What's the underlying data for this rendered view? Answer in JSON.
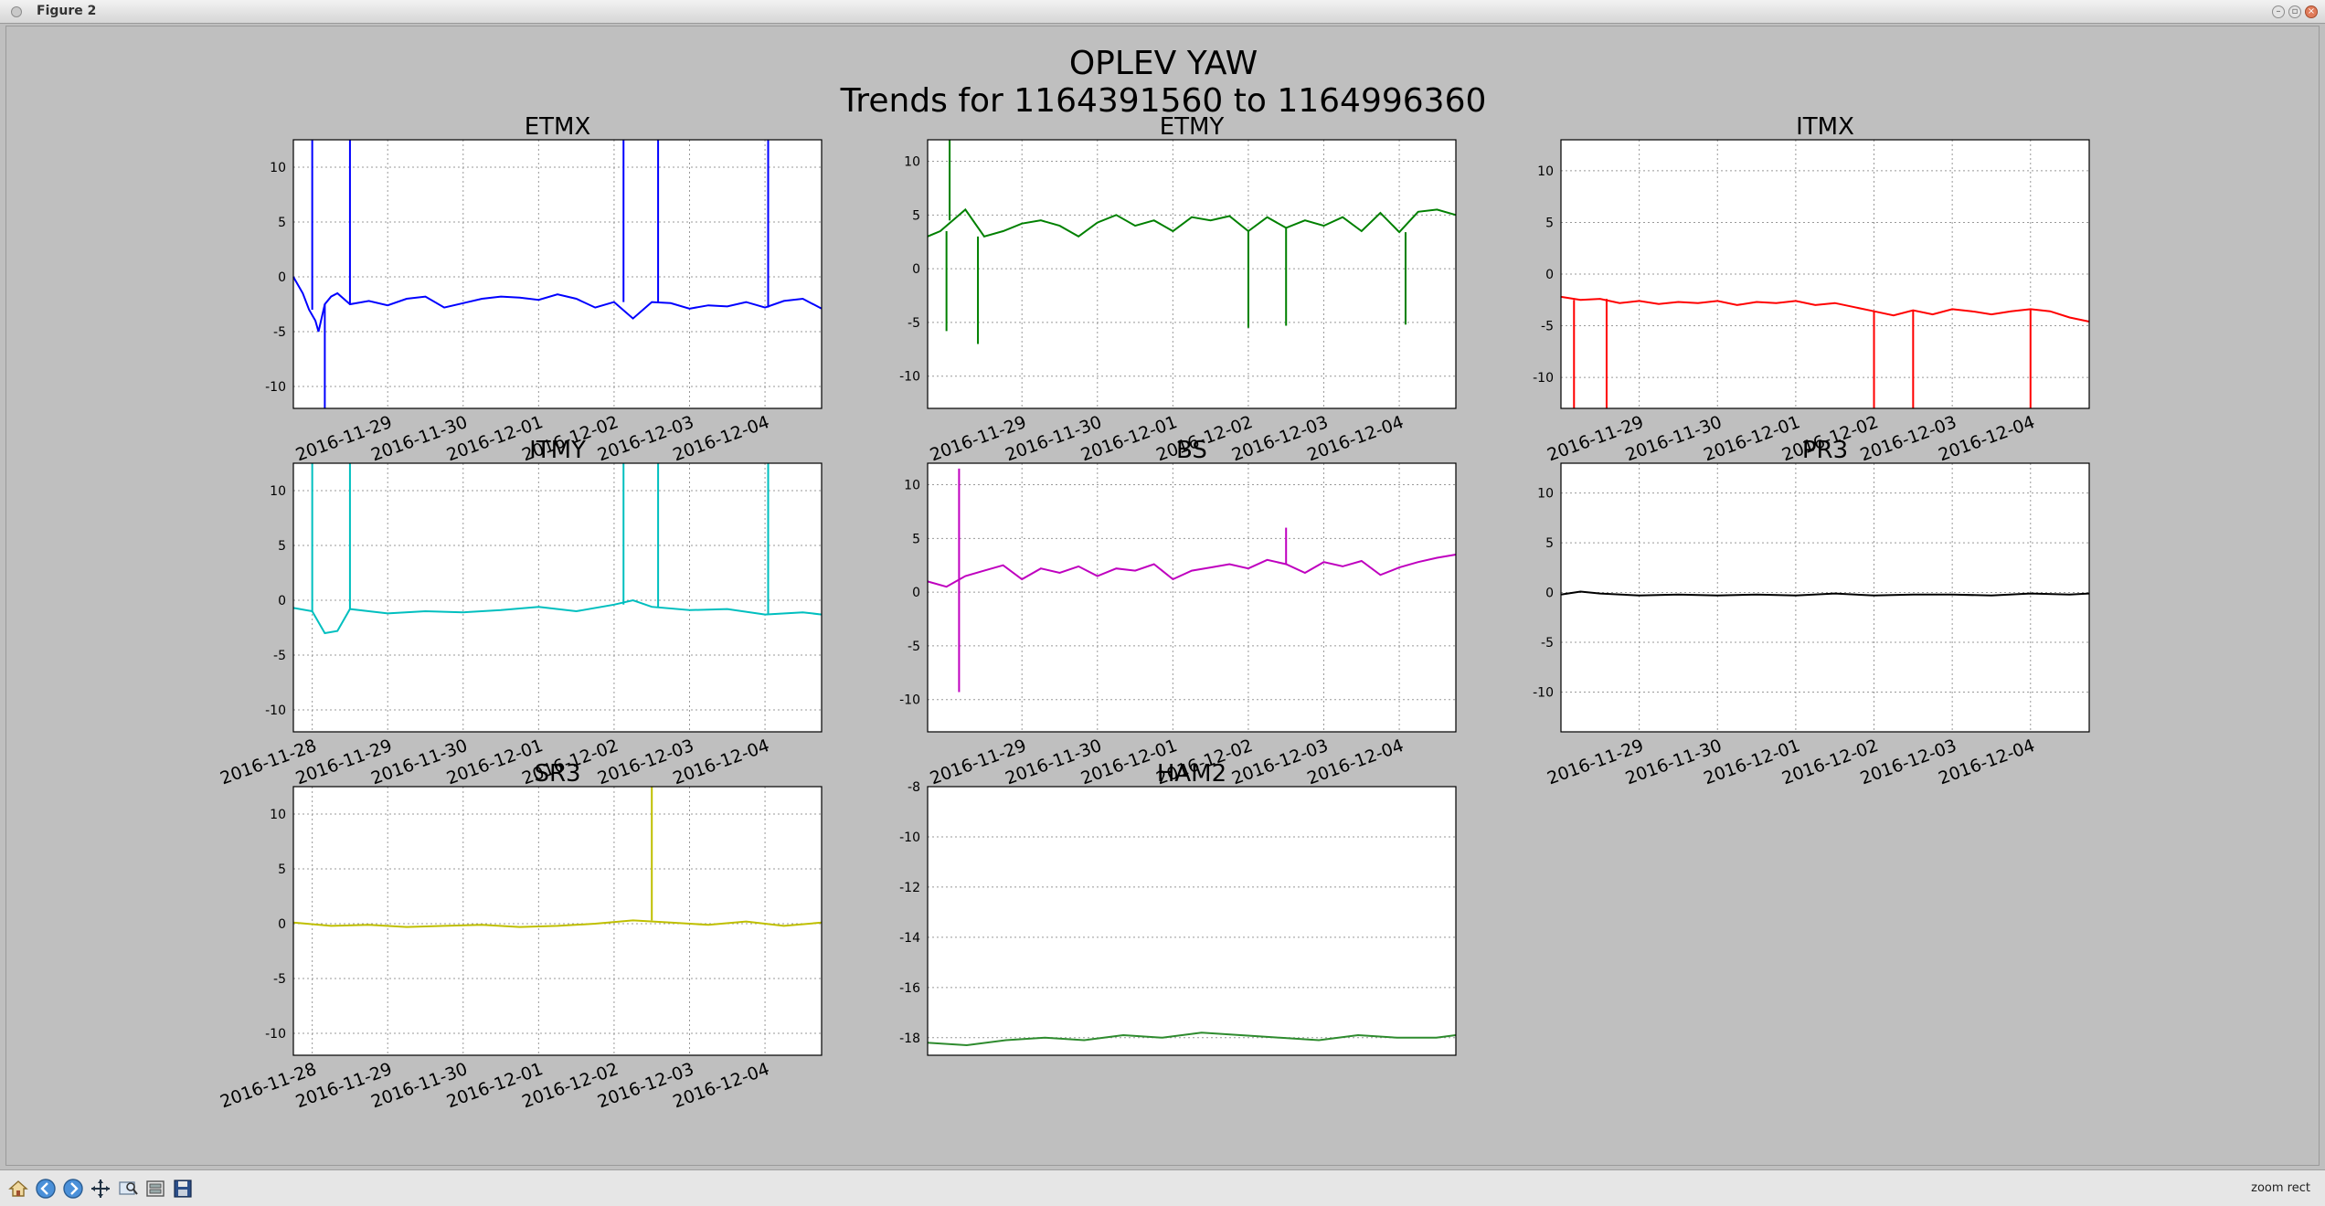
{
  "window": {
    "title": "Figure 2"
  },
  "figure": {
    "title_line1": "OPLEV YAW",
    "title_line2": "Trends for 1164391560 to 1164996360"
  },
  "toolbar": {
    "buttons": [
      "home-icon",
      "back-icon",
      "forward-icon",
      "pan-icon",
      "zoom-icon",
      "configure-icon",
      "save-icon"
    ],
    "status": "zoom rect"
  },
  "chart_data": [
    {
      "type": "line",
      "title": "ETMX",
      "color": "#0000ff",
      "grid": true,
      "xlim": [
        "2016-11-27 18:00",
        "2016-12-04 18:00"
      ],
      "xticks": [
        "2016-11-29",
        "2016-11-30",
        "2016-12-01",
        "2016-12-02",
        "2016-12-03",
        "2016-12-04"
      ],
      "ylim": [
        -12,
        12.5
      ],
      "yticks": [
        -10,
        -5,
        0,
        5,
        10
      ],
      "series": [
        {
          "x": [
            "2016-11-27 18:00",
            "2016-11-27 19:00",
            "2016-11-27 21:00",
            "2016-11-27 23:00",
            "2016-11-28 01:00",
            "2016-11-28 02:00",
            "2016-11-28 04:00",
            "2016-11-28 06:00",
            "2016-11-28 08:00",
            "2016-11-28 12:00",
            "2016-11-28 18:00",
            "2016-11-29 00:00",
            "2016-11-29 06:00",
            "2016-11-29 12:00",
            "2016-11-29 18:00",
            "2016-11-30 00:00",
            "2016-11-30 06:00",
            "2016-11-30 12:00",
            "2016-11-30 18:00",
            "2016-12-01 00:00",
            "2016-12-01 06:00",
            "2016-12-01 12:00",
            "2016-12-01 18:00",
            "2016-12-02 00:00",
            "2016-12-02 06:00",
            "2016-12-02 12:00",
            "2016-12-02 18:00",
            "2016-12-03 00:00",
            "2016-12-03 06:00",
            "2016-12-03 12:00",
            "2016-12-03 18:00",
            "2016-12-04 00:00",
            "2016-12-04 06:00",
            "2016-12-04 12:00",
            "2016-12-04 18:00"
          ],
          "y": [
            0,
            -0.5,
            -1.5,
            -3,
            -4,
            -5,
            -2.5,
            -1.8,
            -1.5,
            -2.5,
            -2.2,
            -2.6,
            -2.0,
            -1.8,
            -2.8,
            -2.4,
            -2.0,
            -1.8,
            -1.9,
            -2.1,
            -1.6,
            -2.0,
            -2.8,
            -2.3,
            -3.8,
            -2.3,
            -2.4,
            -2.9,
            -2.6,
            -2.7,
            -2.3,
            -2.8,
            -2.2,
            -2.0,
            -2.9
          ]
        }
      ],
      "spikes": [
        [
          "2016-11-28 00:00",
          12.5
        ],
        [
          "2016-11-28 04:00",
          -12
        ],
        [
          "2016-11-28 12:00",
          12.5
        ],
        [
          "2016-12-02 03:00",
          12.5
        ],
        [
          "2016-12-02 14:00",
          12.5
        ],
        [
          "2016-12-04 01:00",
          12.5
        ]
      ]
    },
    {
      "type": "line",
      "title": "ETMY",
      "color": "#008000",
      "grid": true,
      "xlim": [
        "2016-11-27 18:00",
        "2016-12-04 18:00"
      ],
      "xticks": [
        "2016-11-29",
        "2016-11-30",
        "2016-12-01",
        "2016-12-02",
        "2016-12-03",
        "2016-12-04"
      ],
      "ylim": [
        -13,
        12
      ],
      "yticks": [
        -10,
        -5,
        0,
        5,
        10
      ],
      "series": [
        {
          "x": [
            "2016-11-27 18:00",
            "2016-11-27 22:00",
            "2016-11-28 02:00",
            "2016-11-28 06:00",
            "2016-11-28 12:00",
            "2016-11-28 18:00",
            "2016-11-29 00:00",
            "2016-11-29 06:00",
            "2016-11-29 12:00",
            "2016-11-29 18:00",
            "2016-11-30 00:00",
            "2016-11-30 06:00",
            "2016-11-30 12:00",
            "2016-11-30 18:00",
            "2016-12-01 00:00",
            "2016-12-01 06:00",
            "2016-12-01 12:00",
            "2016-12-01 18:00",
            "2016-12-02 00:00",
            "2016-12-02 06:00",
            "2016-12-02 12:00",
            "2016-12-02 18:00",
            "2016-12-03 00:00",
            "2016-12-03 06:00",
            "2016-12-03 12:00",
            "2016-12-03 18:00",
            "2016-12-04 00:00",
            "2016-12-04 06:00",
            "2016-12-04 12:00",
            "2016-12-04 18:00"
          ],
          "y": [
            3,
            3.5,
            4.5,
            5.5,
            3,
            3.5,
            4.2,
            4.5,
            4,
            3,
            4.3,
            5,
            4,
            4.5,
            3.5,
            4.8,
            4.5,
            4.9,
            3.5,
            4.8,
            3.8,
            4.5,
            4.0,
            4.8,
            3.5,
            5.2,
            3.4,
            5.3,
            5.5,
            5.0
          ]
        }
      ],
      "spikes": [
        [
          "2016-11-28 01:00",
          12
        ],
        [
          "2016-11-28 00:00",
          -5.8
        ],
        [
          "2016-11-28 10:00",
          -7
        ],
        [
          "2016-12-02 00:00",
          -5.5
        ],
        [
          "2016-12-02 12:00",
          -5.3
        ],
        [
          "2016-12-04 02:00",
          -5.2
        ]
      ]
    },
    {
      "type": "line",
      "title": "ITMX",
      "color": "#ff0000",
      "grid": true,
      "xlim": [
        "2016-11-28 00:00",
        "2016-12-04 18:00"
      ],
      "xticks": [
        "2016-11-29",
        "2016-11-30",
        "2016-12-01",
        "2016-12-02",
        "2016-12-03",
        "2016-12-04"
      ],
      "ylim": [
        -13,
        13
      ],
      "yticks": [
        -10,
        -5,
        0,
        5,
        10
      ],
      "series": [
        {
          "x": [
            "2016-11-28 00:00",
            "2016-11-28 06:00",
            "2016-11-28 12:00",
            "2016-11-28 18:00",
            "2016-11-29 00:00",
            "2016-11-29 06:00",
            "2016-11-29 12:00",
            "2016-11-29 18:00",
            "2016-11-30 00:00",
            "2016-11-30 06:00",
            "2016-11-30 12:00",
            "2016-11-30 18:00",
            "2016-12-01 00:00",
            "2016-12-01 06:00",
            "2016-12-01 12:00",
            "2016-12-01 18:00",
            "2016-12-02 00:00",
            "2016-12-02 06:00",
            "2016-12-02 12:00",
            "2016-12-02 18:00",
            "2016-12-03 00:00",
            "2016-12-03 06:00",
            "2016-12-03 12:00",
            "2016-12-03 18:00",
            "2016-12-04 00:00",
            "2016-12-04 06:00",
            "2016-12-04 12:00",
            "2016-12-04 18:00"
          ],
          "y": [
            -2.2,
            -2.5,
            -2.4,
            -2.8,
            -2.6,
            -2.9,
            -2.7,
            -2.8,
            -2.6,
            -3.0,
            -2.7,
            -2.8,
            -2.6,
            -3.0,
            -2.8,
            -3.2,
            -3.6,
            -4.0,
            -3.5,
            -3.9,
            -3.4,
            -3.6,
            -3.9,
            -3.6,
            -3.4,
            -3.6,
            -4.2,
            -4.6
          ]
        }
      ],
      "spikes": [
        [
          "2016-11-28 04:00",
          -13
        ],
        [
          "2016-11-28 14:00",
          -13
        ],
        [
          "2016-12-02 00:00",
          -13
        ],
        [
          "2016-12-02 12:00",
          -13
        ],
        [
          "2016-12-04 00:00",
          -13
        ]
      ]
    },
    {
      "type": "line",
      "title": "ITMY",
      "color": "#00bfbf",
      "grid": true,
      "xlim": [
        "2016-11-27 18:00",
        "2016-12-04 18:00"
      ],
      "xticks": [
        "2016-11-28",
        "2016-11-29",
        "2016-11-30",
        "2016-12-01",
        "2016-12-02",
        "2016-12-03",
        "2016-12-04"
      ],
      "ylim": [
        -12,
        12.5
      ],
      "yticks": [
        -10,
        -5,
        0,
        5,
        10
      ],
      "series": [
        {
          "x": [
            "2016-11-27 18:00",
            "2016-11-28 00:00",
            "2016-11-28 04:00",
            "2016-11-28 08:00",
            "2016-11-28 12:00",
            "2016-11-28 18:00",
            "2016-11-29 00:00",
            "2016-11-29 12:00",
            "2016-11-30 00:00",
            "2016-11-30 12:00",
            "2016-12-01 00:00",
            "2016-12-01 12:00",
            "2016-12-02 00:00",
            "2016-12-02 06:00",
            "2016-12-02 12:00",
            "2016-12-03 00:00",
            "2016-12-03 12:00",
            "2016-12-04 00:00",
            "2016-12-04 12:00",
            "2016-12-04 18:00"
          ],
          "y": [
            -0.7,
            -1.0,
            -3,
            -2.8,
            -0.8,
            -1.0,
            -1.2,
            -1.0,
            -1.1,
            -0.9,
            -0.6,
            -1.0,
            -0.4,
            0,
            -0.6,
            -0.9,
            -0.8,
            -1.3,
            -1.1,
            -1.3
          ]
        }
      ],
      "spikes": [
        [
          "2016-11-28 00:00",
          12.5
        ],
        [
          "2016-11-28 12:00",
          12.5
        ],
        [
          "2016-12-02 03:00",
          12.5
        ],
        [
          "2016-12-02 14:00",
          12.5
        ],
        [
          "2016-12-04 01:00",
          12.5
        ]
      ]
    },
    {
      "type": "line",
      "title": "BS",
      "color": "#bf00bf",
      "grid": true,
      "xlim": [
        "2016-11-27 18:00",
        "2016-12-04 18:00"
      ],
      "xticks": [
        "2016-11-29",
        "2016-11-30",
        "2016-12-01",
        "2016-12-02",
        "2016-12-03",
        "2016-12-04"
      ],
      "ylim": [
        -13,
        12
      ],
      "yticks": [
        -10,
        -5,
        0,
        5,
        10
      ],
      "series": [
        {
          "x": [
            "2016-11-27 18:00",
            "2016-11-28 00:00",
            "2016-11-28 06:00",
            "2016-11-28 12:00",
            "2016-11-28 18:00",
            "2016-11-29 00:00",
            "2016-11-29 06:00",
            "2016-11-29 12:00",
            "2016-11-29 18:00",
            "2016-11-30 00:00",
            "2016-11-30 06:00",
            "2016-11-30 12:00",
            "2016-11-30 18:00",
            "2016-12-01 00:00",
            "2016-12-01 06:00",
            "2016-12-01 12:00",
            "2016-12-01 18:00",
            "2016-12-02 00:00",
            "2016-12-02 06:00",
            "2016-12-02 12:00",
            "2016-12-02 18:00",
            "2016-12-03 00:00",
            "2016-12-03 06:00",
            "2016-12-03 12:00",
            "2016-12-03 18:00",
            "2016-12-04 00:00",
            "2016-12-04 06:00",
            "2016-12-04 12:00",
            "2016-12-04 18:00"
          ],
          "y": [
            1,
            0.5,
            1.5,
            2,
            2.5,
            1.2,
            2.2,
            1.8,
            2.4,
            1.5,
            2.2,
            2.0,
            2.6,
            1.2,
            2.0,
            2.3,
            2.6,
            2.2,
            3.0,
            2.6,
            1.8,
            2.8,
            2.4,
            2.9,
            1.6,
            2.3,
            2.8,
            3.2,
            3.5
          ]
        }
      ],
      "spikes": [
        [
          "2016-11-28 04:00",
          11.5
        ],
        [
          "2016-11-28 04:00",
          -9.3
        ],
        [
          "2016-12-02 12:00",
          6
        ]
      ]
    },
    {
      "type": "line",
      "title": "PR3",
      "color": "#000000",
      "grid": true,
      "xlim": [
        "2016-11-28 00:00",
        "2016-12-04 18:00"
      ],
      "xticks": [
        "2016-11-29",
        "2016-11-30",
        "2016-12-01",
        "2016-12-02",
        "2016-12-03",
        "2016-12-04"
      ],
      "ylim": [
        -14,
        13
      ],
      "yticks": [
        -10,
        -5,
        0,
        5,
        10
      ],
      "series": [
        {
          "x": [
            "2016-11-28 00:00",
            "2016-11-28 06:00",
            "2016-11-28 12:00",
            "2016-11-29 00:00",
            "2016-11-29 12:00",
            "2016-11-30 00:00",
            "2016-11-30 12:00",
            "2016-12-01 00:00",
            "2016-12-01 12:00",
            "2016-12-02 00:00",
            "2016-12-02 12:00",
            "2016-12-03 00:00",
            "2016-12-03 12:00",
            "2016-12-04 00:00",
            "2016-12-04 12:00",
            "2016-12-04 18:00"
          ],
          "y": [
            -0.2,
            0.1,
            -0.1,
            -0.3,
            -0.2,
            -0.3,
            -0.2,
            -0.3,
            -0.1,
            -0.3,
            -0.2,
            -0.2,
            -0.3,
            -0.1,
            -0.2,
            -0.1
          ]
        }
      ],
      "spikes": []
    },
    {
      "type": "line",
      "title": "SR3",
      "color": "#bfbf00",
      "grid": true,
      "xlim": [
        "2016-11-27 18:00",
        "2016-12-04 18:00"
      ],
      "xticks": [
        "2016-11-28",
        "2016-11-29",
        "2016-11-30",
        "2016-12-01",
        "2016-12-02",
        "2016-12-03",
        "2016-12-04"
      ],
      "ylim": [
        -12,
        12.5
      ],
      "yticks": [
        -10,
        -5,
        0,
        5,
        10
      ],
      "series": [
        {
          "x": [
            "2016-11-27 18:00",
            "2016-11-28 06:00",
            "2016-11-28 18:00",
            "2016-11-29 06:00",
            "2016-11-29 18:00",
            "2016-11-30 06:00",
            "2016-11-30 18:00",
            "2016-12-01 06:00",
            "2016-12-01 18:00",
            "2016-12-02 06:00",
            "2016-12-02 18:00",
            "2016-12-03 06:00",
            "2016-12-03 18:00",
            "2016-12-04 06:00",
            "2016-12-04 18:00"
          ],
          "y": [
            0.1,
            -0.2,
            -0.1,
            -0.3,
            -0.2,
            -0.1,
            -0.3,
            -0.2,
            0,
            0.3,
            0.1,
            -0.1,
            0.2,
            -0.2,
            0.1
          ]
        }
      ],
      "spikes": [
        [
          "2016-12-02 12:00",
          12.5
        ]
      ]
    },
    {
      "type": "line",
      "title": "HAM2",
      "color": "#2e8b2e",
      "grid": true,
      "xlim": [
        "2016-11-28 00:00",
        "2016-12-04 18:00"
      ],
      "xticks": [],
      "ylim": [
        -18.7,
        -8
      ],
      "yticks": [
        -18,
        -16,
        -14,
        -12,
        -10,
        -8
      ],
      "series": [
        {
          "x": [
            "2016-11-28 00:00",
            "2016-11-28 12:00",
            "2016-11-29 00:00",
            "2016-11-29 12:00",
            "2016-11-30 00:00",
            "2016-11-30 12:00",
            "2016-12-01 00:00",
            "2016-12-01 12:00",
            "2016-12-02 00:00",
            "2016-12-02 12:00",
            "2016-12-03 00:00",
            "2016-12-03 12:00",
            "2016-12-04 00:00",
            "2016-12-04 12:00",
            "2016-12-04 18:00"
          ],
          "y": [
            -18.2,
            -18.3,
            -18.1,
            -18.0,
            -18.1,
            -17.9,
            -18.0,
            -17.8,
            -17.9,
            -18.0,
            -18.1,
            -17.9,
            -18.0,
            -18.0,
            -17.9
          ]
        }
      ],
      "spikes": []
    }
  ]
}
